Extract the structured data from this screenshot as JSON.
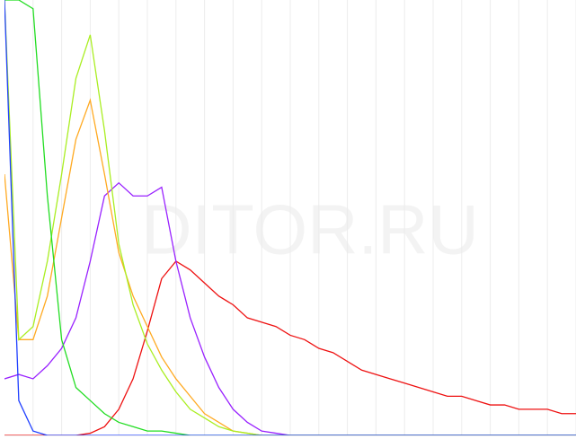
{
  "chart_data": {
    "type": "line",
    "watermark": "DITOR.RU",
    "x": [
      0,
      5,
      10,
      15,
      20,
      25,
      30,
      35,
      40,
      45,
      50,
      55,
      60,
      65,
      70,
      75,
      80,
      85,
      90,
      95,
      100,
      105,
      110,
      115,
      120,
      125,
      130,
      135,
      140,
      145,
      150,
      155,
      160,
      165,
      170,
      175,
      180,
      185,
      190,
      195,
      200
    ],
    "xlim": [
      0,
      200
    ],
    "ylim": [
      0,
      100
    ],
    "xticks": [
      10,
      20,
      30,
      40,
      50,
      60,
      70,
      80,
      90,
      100,
      110,
      120,
      130,
      140,
      150,
      160,
      170,
      180,
      190,
      200
    ],
    "grid": true,
    "series": [
      {
        "color": "#ee1111",
        "values": [
          0,
          0,
          0,
          0,
          0,
          0,
          0.5,
          2,
          6,
          13,
          24,
          36,
          40,
          38,
          35,
          32,
          30,
          27,
          26,
          25,
          23,
          22,
          20,
          19,
          17,
          15,
          14,
          13,
          12,
          11,
          10,
          9,
          9,
          8,
          7,
          7,
          6,
          6,
          6,
          5,
          5
        ]
      },
      {
        "color": "#9922ff",
        "values": [
          13,
          14,
          13,
          16,
          20,
          27,
          40,
          55,
          58,
          55,
          55,
          57,
          40,
          27,
          18,
          11,
          6,
          3,
          1,
          0.5,
          0,
          0,
          0,
          0,
          0,
          0,
          0,
          0,
          0,
          0,
          0,
          0,
          0,
          0,
          0,
          0,
          0,
          0,
          0,
          0,
          0
        ]
      },
      {
        "color": "#ffaa22",
        "values": [
          60,
          22,
          22,
          32,
          50,
          68,
          77,
          60,
          42,
          32,
          25,
          18,
          13,
          9,
          5,
          3,
          1,
          0.5,
          0,
          0,
          0,
          0,
          0,
          0,
          0,
          0,
          0,
          0,
          0,
          0,
          0,
          0,
          0,
          0,
          0,
          0,
          0,
          0,
          0,
          0,
          0
        ]
      },
      {
        "color": "#aaee22",
        "values": [
          100,
          22,
          25,
          40,
          60,
          82,
          92,
          70,
          44,
          30,
          21,
          15,
          10,
          6,
          4,
          2,
          1,
          0.5,
          0,
          0,
          0,
          0,
          0,
          0,
          0,
          0,
          0,
          0,
          0,
          0,
          0,
          0,
          0,
          0,
          0,
          0,
          0,
          0,
          0,
          0,
          0
        ]
      },
      {
        "color": "#22dd22",
        "values": [
          100,
          100,
          98,
          55,
          22,
          11,
          8,
          5,
          3,
          2,
          1,
          1,
          0.5,
          0,
          0,
          0,
          0,
          0,
          0,
          0,
          0,
          0,
          0,
          0,
          0,
          0,
          0,
          0,
          0,
          0,
          0,
          0,
          0,
          0,
          0,
          0,
          0,
          0,
          0,
          0,
          0
        ]
      },
      {
        "color": "#2040ff",
        "values": [
          100,
          8,
          1,
          0,
          0,
          0,
          0,
          0,
          0,
          0,
          0,
          0,
          0,
          0,
          0,
          0,
          0,
          0,
          0,
          0,
          0,
          0,
          0,
          0,
          0,
          0,
          0,
          0,
          0,
          0,
          0,
          0,
          0,
          0,
          0,
          0,
          0,
          0,
          0,
          0,
          0
        ]
      }
    ]
  }
}
